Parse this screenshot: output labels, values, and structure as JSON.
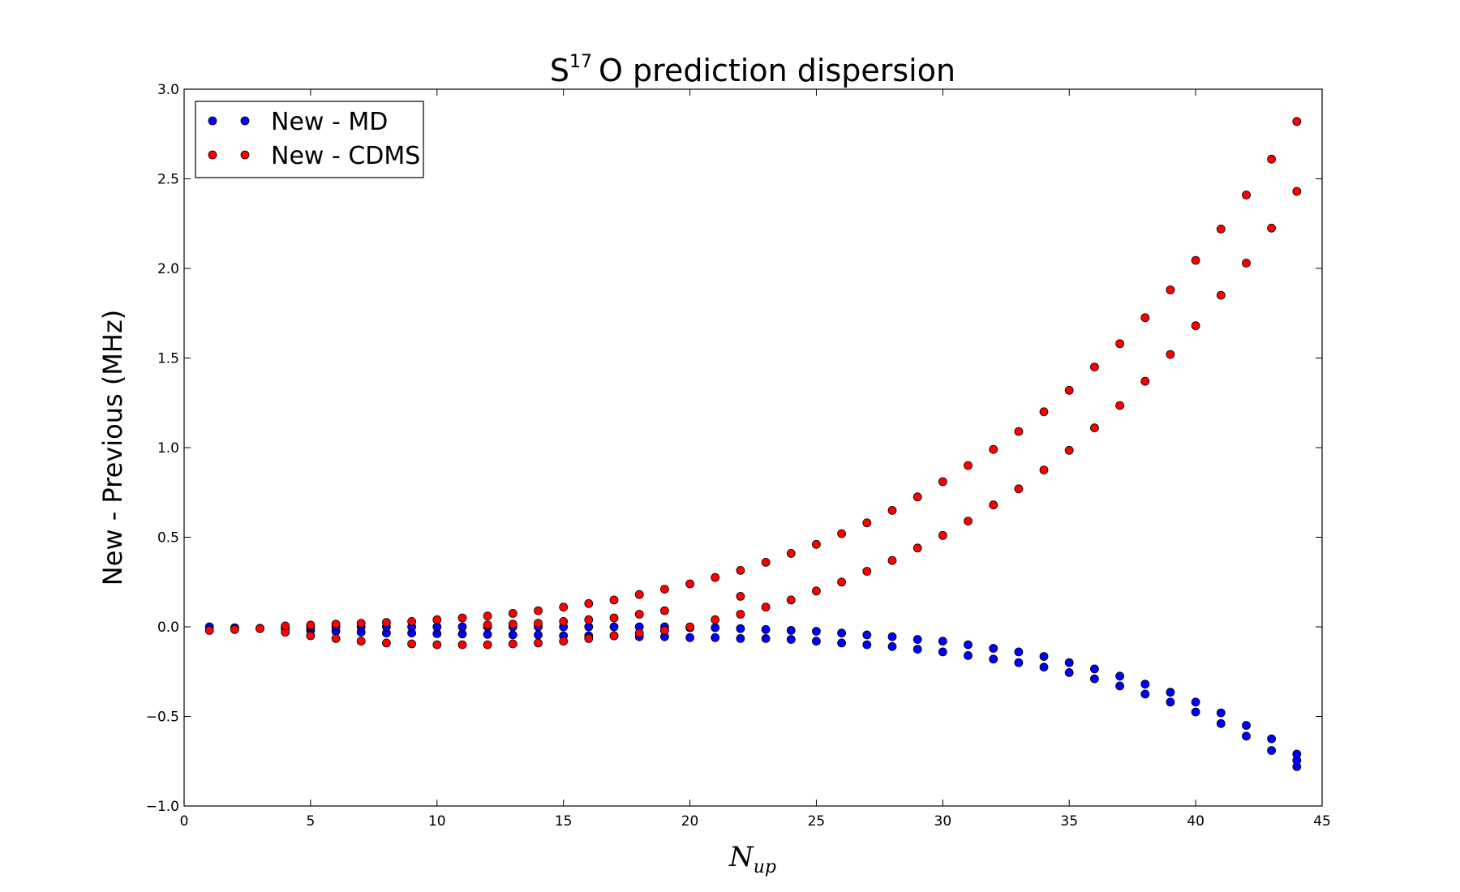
{
  "chart_data": {
    "type": "scatter",
    "title": "S17O prediction dispersion",
    "title_parts": {
      "base": "S",
      "sup": "17",
      "rest": "O prediction dispersion"
    },
    "xlabel": "Nup",
    "xlabel_parts": {
      "base": "N",
      "sub": "up"
    },
    "ylabel": "New - Previous (MHz)",
    "xlim": [
      0,
      45
    ],
    "ylim": [
      -1.0,
      3.0
    ],
    "xticks": [
      0,
      5,
      10,
      15,
      20,
      25,
      30,
      35,
      40,
      45
    ],
    "xtick_labels": [
      "0",
      "5",
      "10",
      "15",
      "20",
      "25",
      "30",
      "35",
      "40",
      "45"
    ],
    "yticks": [
      -1.0,
      -0.5,
      0.0,
      0.5,
      1.0,
      1.5,
      2.0,
      2.5,
      3.0
    ],
    "ytick_labels": [
      "−1.0",
      "−0.5",
      "0.0",
      "0.5",
      "1.0",
      "1.5",
      "2.0",
      "2.5",
      "3.0"
    ],
    "grid": false,
    "legend_position": "top-left",
    "series": [
      {
        "name": "New - MD",
        "color": "#0000ff",
        "x": [
          1,
          2,
          3,
          4,
          4,
          5,
          5,
          6,
          6,
          7,
          7,
          8,
          8,
          9,
          9,
          10,
          10,
          11,
          11,
          12,
          12,
          13,
          13,
          14,
          14,
          15,
          15,
          16,
          16,
          17,
          17,
          18,
          18,
          19,
          19,
          20,
          20,
          21,
          21,
          22,
          22,
          23,
          23,
          24,
          24,
          25,
          25,
          26,
          26,
          27,
          27,
          28,
          28,
          29,
          29,
          30,
          30,
          31,
          31,
          32,
          32,
          33,
          33,
          34,
          34,
          35,
          35,
          36,
          36,
          37,
          37,
          38,
          38,
          39,
          39,
          40,
          40,
          41,
          41,
          42,
          42,
          43,
          43,
          44,
          44,
          44
        ],
        "y": [
          0.0,
          -0.005,
          -0.008,
          -0.01,
          0.0,
          -0.02,
          0.0,
          -0.025,
          0.0,
          -0.03,
          0.0,
          -0.035,
          0.0,
          -0.035,
          0.0,
          -0.038,
          0.0,
          -0.04,
          0.0,
          -0.042,
          0.0,
          -0.045,
          0.0,
          -0.045,
          0.0,
          -0.05,
          0.0,
          -0.05,
          0.0,
          -0.05,
          0.0,
          -0.055,
          0.0,
          -0.055,
          0.0,
          -0.06,
          -0.005,
          -0.06,
          -0.005,
          -0.065,
          -0.01,
          -0.065,
          -0.015,
          -0.07,
          -0.02,
          -0.08,
          -0.025,
          -0.09,
          -0.035,
          -0.1,
          -0.045,
          -0.11,
          -0.055,
          -0.125,
          -0.07,
          -0.14,
          -0.08,
          -0.16,
          -0.1,
          -0.18,
          -0.12,
          -0.2,
          -0.14,
          -0.225,
          -0.165,
          -0.255,
          -0.2,
          -0.29,
          -0.235,
          -0.33,
          -0.275,
          -0.375,
          -0.32,
          -0.42,
          -0.365,
          -0.475,
          -0.42,
          -0.54,
          -0.48,
          -0.61,
          -0.55,
          -0.69,
          -0.625,
          -0.78,
          -0.745,
          -0.71
        ]
      },
      {
        "name": "New - CDMS",
        "color": "#ff0000",
        "x": [
          1,
          2,
          3,
          4,
          4,
          5,
          5,
          6,
          6,
          7,
          7,
          8,
          8,
          9,
          9,
          10,
          10,
          11,
          11,
          12,
          12,
          12,
          13,
          13,
          13,
          14,
          14,
          14,
          15,
          15,
          15,
          16,
          16,
          16,
          17,
          17,
          17,
          18,
          18,
          18,
          19,
          19,
          19,
          20,
          20,
          21,
          21,
          22,
          22,
          22,
          23,
          23,
          24,
          24,
          25,
          25,
          26,
          26,
          27,
          27,
          28,
          28,
          29,
          29,
          30,
          30,
          31,
          31,
          32,
          32,
          33,
          33,
          34,
          34,
          35,
          35,
          36,
          36,
          37,
          37,
          38,
          38,
          39,
          39,
          40,
          40,
          41,
          41,
          42,
          42,
          43,
          43,
          44,
          44
        ],
        "y": [
          -0.02,
          -0.015,
          -0.01,
          -0.03,
          0.005,
          -0.05,
          0.01,
          -0.065,
          0.015,
          -0.08,
          0.02,
          -0.09,
          0.025,
          -0.095,
          0.03,
          -0.1,
          0.04,
          -0.1,
          0.05,
          -0.1,
          0.01,
          0.06,
          -0.095,
          0.015,
          0.075,
          -0.09,
          0.02,
          0.09,
          -0.08,
          0.03,
          0.11,
          -0.065,
          0.04,
          0.13,
          -0.05,
          0.05,
          0.15,
          -0.035,
          0.07,
          0.18,
          -0.02,
          0.09,
          0.21,
          0.0,
          0.24,
          0.04,
          0.275,
          0.07,
          0.17,
          0.315,
          0.11,
          0.36,
          0.15,
          0.41,
          0.2,
          0.46,
          0.25,
          0.52,
          0.31,
          0.58,
          0.37,
          0.65,
          0.44,
          0.725,
          0.51,
          0.81,
          0.59,
          0.9,
          0.68,
          0.99,
          0.77,
          1.09,
          0.875,
          1.2,
          0.985,
          1.32,
          1.11,
          1.45,
          1.235,
          1.58,
          1.37,
          1.725,
          1.52,
          1.88,
          1.68,
          2.045,
          1.85,
          2.22,
          2.03,
          2.41,
          2.225,
          2.61,
          2.43,
          2.82
        ]
      }
    ]
  }
}
